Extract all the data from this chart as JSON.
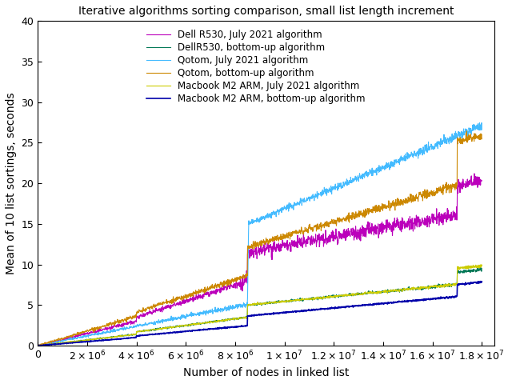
{
  "title": "Iterative algorithms sorting comparison, small list length increment",
  "xlabel": "Number of nodes in linked list",
  "ylabel": "Mean of 10 list sortings, seconds",
  "xlim": [
    0,
    18500000.0
  ],
  "ylim": [
    0,
    40
  ],
  "legend": [
    "Dell R530, July 2021 algorithm",
    "DellR530, bottom-up algorithm",
    "Qotom, July 2021 algorithm",
    "Qotom, bottom-up algorithm",
    "Macbook M2 ARM, July 2021 algorithm",
    "Macbook M2 ARM, bottom-up algorithm"
  ],
  "colors": [
    "#bb00bb",
    "#007755",
    "#44bbff",
    "#cc8800",
    "#cccc00",
    "#0000aa"
  ],
  "linewidths": [
    0.8,
    0.8,
    0.8,
    0.8,
    0.8,
    1.2
  ],
  "background": "#ffffff",
  "xtick_positions": [
    0,
    2000000,
    4000000,
    6000000,
    8000000,
    10000000,
    12000000,
    14000000,
    16000000,
    18000000
  ],
  "ytick_positions": [
    0,
    5,
    10,
    15,
    20,
    25,
    30,
    35,
    40
  ]
}
